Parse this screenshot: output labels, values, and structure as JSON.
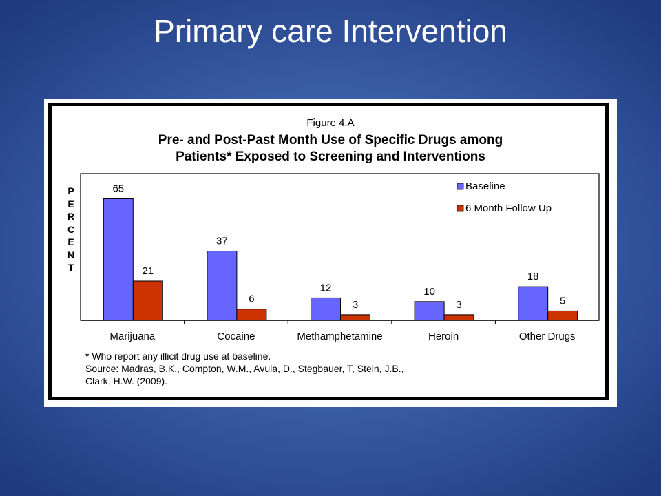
{
  "slide": {
    "title": "Primary care Intervention"
  },
  "figure": {
    "number": "Figure 4.A",
    "title_line1": "Pre- and Post-Past Month Use of Specific Drugs among",
    "title_line2": "Patients* Exposed to Screening and Interventions",
    "footnote": "* Who report any illicit drug use at baseline.",
    "source_line1": "Source: Madras, B.K., Compton, W.M., Avula, D., Stegbauer, T, Stein, J.B.,",
    "source_line2": "Clark, H.W. (2009)."
  },
  "chart_data": {
    "type": "bar",
    "categories": [
      "Marijuana",
      "Cocaine",
      "Methamphetamine",
      "Heroin",
      "Other Drugs"
    ],
    "series": [
      {
        "name": "Baseline",
        "values": [
          65,
          37,
          12,
          10,
          18
        ],
        "color": "#6666ff"
      },
      {
        "name": "6 Month Follow Up",
        "values": [
          21,
          6,
          3,
          3,
          5
        ],
        "color": "#cc3300"
      }
    ],
    "ylabel": "PERCENT",
    "ylim": [
      0,
      70
    ],
    "legend_position": "top-right",
    "grid": false
  }
}
